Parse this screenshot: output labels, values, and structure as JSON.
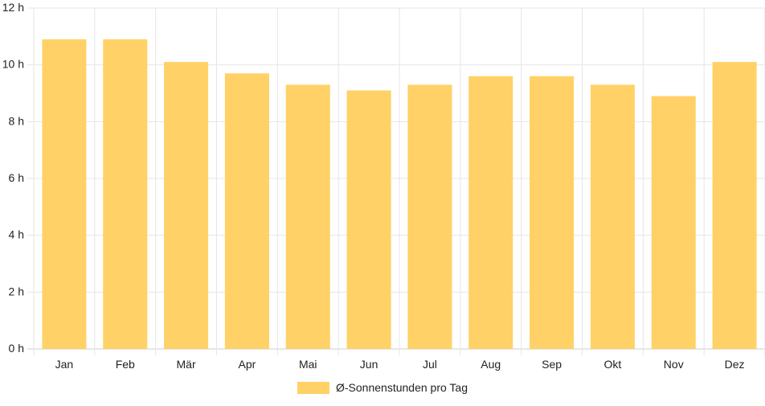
{
  "chart_data": {
    "type": "bar",
    "categories": [
      "Jan",
      "Feb",
      "Mär",
      "Apr",
      "Mai",
      "Jun",
      "Jul",
      "Aug",
      "Sep",
      "Okt",
      "Nov",
      "Dez"
    ],
    "series": [
      {
        "name": "Ø-Sonnenstunden pro Tag",
        "values": [
          10.9,
          10.9,
          10.1,
          9.7,
          9.3,
          9.1,
          9.3,
          9.6,
          9.6,
          9.3,
          8.9,
          10.1
        ]
      }
    ],
    "yticks": [
      "0 h",
      "2 h",
      "4 h",
      "6 h",
      "8 h",
      "10 h",
      "12 h"
    ],
    "ylim": [
      0,
      12
    ],
    "grid": true,
    "legend_position": "bottom",
    "colors": {
      "bar": "#ffd166",
      "grid": "#e6e6e6",
      "axis": "#cccccc",
      "text": "#222222"
    }
  }
}
